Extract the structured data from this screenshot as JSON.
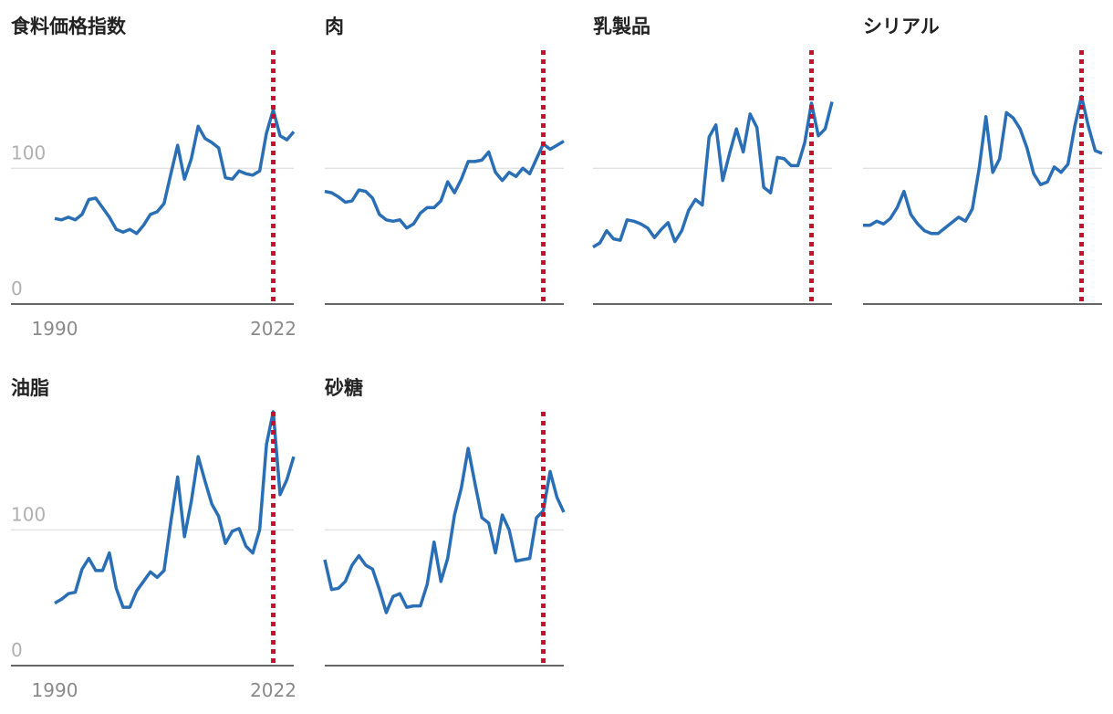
{
  "chart_data": [
    {
      "type": "line",
      "title": "食料価格指数",
      "tick_labels": true,
      "x": [
        1990,
        1991,
        1992,
        1993,
        1994,
        1995,
        1996,
        1997,
        1998,
        1999,
        2000,
        2001,
        2002,
        2003,
        2004,
        2005,
        2006,
        2007,
        2008,
        2009,
        2010,
        2011,
        2012,
        2013,
        2014,
        2015,
        2016,
        2017,
        2018,
        2019,
        2020,
        2021,
        2022,
        2023,
        2024,
        2025
      ],
      "series": [
        {
          "color": "#2a6fb5",
          "values": [
            63,
            62,
            64,
            62,
            66,
            77,
            78,
            71,
            64,
            55,
            53,
            55,
            52,
            58,
            66,
            68,
            74,
            96,
            117,
            92,
            107,
            131,
            122,
            119,
            115,
            93,
            92,
            98,
            96,
            95,
            98,
            126,
            143,
            124,
            121,
            127
          ]
        }
      ],
      "xlim": [
        1990,
        2025
      ],
      "ylim": [
        0,
        187
      ],
      "yticks": [
        0,
        100
      ],
      "xticks": [
        1990,
        2022
      ],
      "grid": true,
      "marker_x": 2022,
      "marker_color": "#c8102e"
    },
    {
      "type": "line",
      "title": "肉",
      "tick_labels": false,
      "x": [
        1990,
        1991,
        1992,
        1993,
        1994,
        1995,
        1996,
        1997,
        1998,
        1999,
        2000,
        2001,
        2002,
        2003,
        2004,
        2005,
        2006,
        2007,
        2008,
        2009,
        2010,
        2011,
        2012,
        2013,
        2014,
        2015,
        2016,
        2017,
        2018,
        2019,
        2020,
        2021,
        2022,
        2023,
        2024,
        2025
      ],
      "series": [
        {
          "color": "#2a6fb5",
          "values": [
            83,
            82,
            79,
            75,
            76,
            84,
            83,
            78,
            66,
            62,
            61,
            62,
            56,
            59,
            67,
            71,
            71,
            76,
            90,
            82,
            92,
            105,
            105,
            106,
            112,
            97,
            91,
            97,
            94,
            100,
            96,
            107,
            118,
            114,
            117,
            120
          ]
        }
      ],
      "xlim": [
        1990,
        2025
      ],
      "ylim": [
        0,
        187
      ],
      "yticks": [
        0,
        100
      ],
      "grid": true,
      "marker_x": 2022,
      "marker_color": "#c8102e"
    },
    {
      "type": "line",
      "title": "乳製品",
      "tick_labels": false,
      "x": [
        1990,
        1991,
        1992,
        1993,
        1994,
        1995,
        1996,
        1997,
        1998,
        1999,
        2000,
        2001,
        2002,
        2003,
        2004,
        2005,
        2006,
        2007,
        2008,
        2009,
        2010,
        2011,
        2012,
        2013,
        2014,
        2015,
        2016,
        2017,
        2018,
        2019,
        2020,
        2021,
        2022,
        2023,
        2024,
        2025
      ],
      "series": [
        {
          "color": "#2a6fb5",
          "values": [
            42,
            45,
            54,
            48,
            47,
            62,
            61,
            59,
            56,
            49,
            55,
            60,
            46,
            54,
            69,
            77,
            73,
            123,
            132,
            91,
            111,
            129,
            112,
            140,
            130,
            86,
            82,
            108,
            107,
            102,
            102,
            119,
            148,
            124,
            129,
            149
          ]
        }
      ],
      "xlim": [
        1990,
        2025
      ],
      "ylim": [
        0,
        187
      ],
      "yticks": [
        0,
        100
      ],
      "grid": true,
      "marker_x": 2022,
      "marker_color": "#c8102e"
    },
    {
      "type": "line",
      "title": "シリアル",
      "tick_labels": false,
      "x": [
        1990,
        1991,
        1992,
        1993,
        1994,
        1995,
        1996,
        1997,
        1998,
        1999,
        2000,
        2001,
        2002,
        2003,
        2004,
        2005,
        2006,
        2007,
        2008,
        2009,
        2010,
        2011,
        2012,
        2013,
        2014,
        2015,
        2016,
        2017,
        2018,
        2019,
        2020,
        2021,
        2022,
        2023,
        2024,
        2025
      ],
      "series": [
        {
          "color": "#2a6fb5",
          "values": [
            58,
            58,
            61,
            59,
            63,
            71,
            83,
            66,
            59,
            54,
            52,
            52,
            56,
            60,
            64,
            61,
            70,
            100,
            138,
            97,
            107,
            141,
            137,
            129,
            115,
            96,
            88,
            90,
            101,
            97,
            103,
            131,
            153,
            131,
            113,
            111
          ]
        }
      ],
      "xlim": [
        1990,
        2025
      ],
      "ylim": [
        0,
        187
      ],
      "yticks": [
        0,
        100
      ],
      "grid": true,
      "marker_x": 2022,
      "marker_color": "#c8102e"
    },
    {
      "type": "line",
      "title": "油脂",
      "tick_labels": true,
      "x": [
        1990,
        1991,
        1992,
        1993,
        1994,
        1995,
        1996,
        1997,
        1998,
        1999,
        2000,
        2001,
        2002,
        2003,
        2004,
        2005,
        2006,
        2007,
        2008,
        2009,
        2010,
        2011,
        2012,
        2013,
        2014,
        2015,
        2016,
        2017,
        2018,
        2019,
        2020,
        2021,
        2022,
        2023,
        2024,
        2025
      ],
      "series": [
        {
          "color": "#2a6fb5",
          "values": [
            46,
            49,
            53,
            54,
            71,
            79,
            70,
            70,
            83,
            57,
            43,
            43,
            55,
            62,
            69,
            65,
            70,
            106,
            139,
            95,
            121,
            154,
            136,
            119,
            110,
            90,
            99,
            101,
            88,
            83,
            100,
            163,
            187,
            126,
            137,
            154
          ]
        }
      ],
      "xlim": [
        1990,
        2025
      ],
      "ylim": [
        0,
        187
      ],
      "yticks": [
        0,
        100
      ],
      "xticks": [
        1990,
        2022
      ],
      "grid": true,
      "marker_x": 2022,
      "marker_color": "#c8102e"
    },
    {
      "type": "line",
      "title": "砂糖",
      "tick_labels": false,
      "x": [
        1990,
        1991,
        1992,
        1993,
        1994,
        1995,
        1996,
        1997,
        1998,
        1999,
        2000,
        2001,
        2002,
        2003,
        2004,
        2005,
        2006,
        2007,
        2008,
        2009,
        2010,
        2011,
        2012,
        2013,
        2014,
        2015,
        2016,
        2017,
        2018,
        2019,
        2020,
        2021,
        2022,
        2023,
        2024,
        2025
      ],
      "series": [
        {
          "color": "#2a6fb5",
          "values": [
            78,
            56,
            57,
            62,
            74,
            81,
            74,
            71,
            56,
            39,
            51,
            53,
            43,
            44,
            44,
            60,
            91,
            62,
            79,
            111,
            131,
            160,
            134,
            109,
            105,
            83,
            111,
            100,
            77,
            78,
            79,
            109,
            114,
            143,
            124,
            113
          ]
        }
      ],
      "xlim": [
        1990,
        2025
      ],
      "ylim": [
        0,
        187
      ],
      "yticks": [
        0,
        100
      ],
      "grid": true,
      "marker_x": 2022,
      "marker_color": "#c8102e"
    }
  ]
}
